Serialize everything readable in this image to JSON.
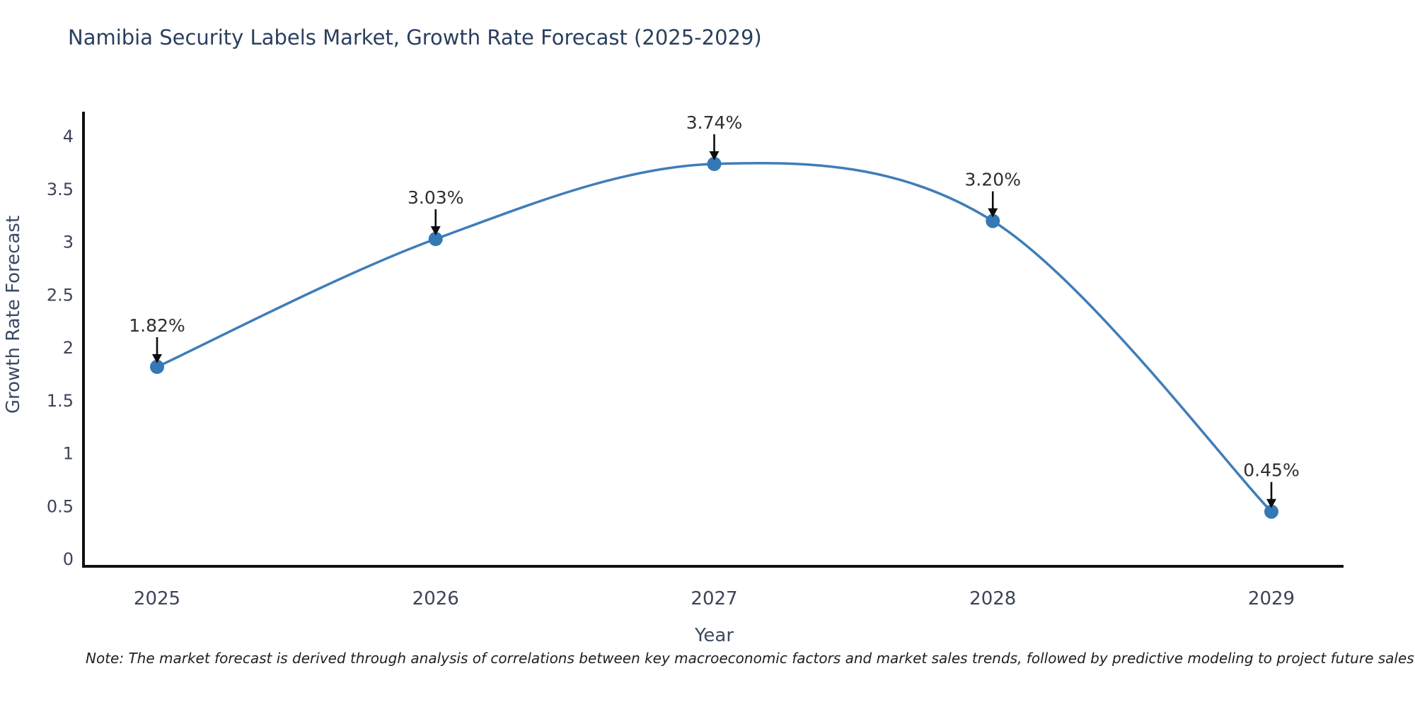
{
  "page": {
    "title": "Namibia Security Labels Market, Growth Rate Forecast (2025-2029)",
    "note": "Note: The market forecast is derived through analysis of correlations between key macroeconomic factors and market sales trends, followed by predictive modeling to project future sales"
  },
  "chart_data": {
    "type": "line",
    "title": "Namibia Security Labels Market, Growth Rate Forecast (2025-2029)",
    "xlabel": "Year",
    "ylabel": "Growth Rate Forecast",
    "categories": [
      "2025",
      "2026",
      "2027",
      "2028",
      "2029"
    ],
    "x": [
      2025,
      2026,
      2027,
      2028,
      2029
    ],
    "values": [
      1.82,
      3.03,
      3.74,
      3.2,
      0.45
    ],
    "point_labels": [
      "1.82%",
      "3.03%",
      "3.74%",
      "3.20%",
      "0.45%"
    ],
    "ytick_values": [
      0,
      0.5,
      1,
      1.5,
      2,
      2.5,
      3,
      3.5,
      4
    ],
    "ytick_labels": [
      "0",
      "0.5",
      "1",
      "1.5",
      "2",
      "2.5",
      "3",
      "3.5",
      "4"
    ],
    "ylim": [
      0,
      4.3
    ],
    "grid": false,
    "legend": null,
    "colors": {
      "line": "#3f7db8",
      "marker": "#3578b6",
      "axis": "#111111",
      "tick_label": "#3d4458",
      "axis_title": "#3b4a63",
      "title": "#2a3f5f",
      "annotation_text": "#2e2e2e",
      "arrow": "#0d0d0d"
    }
  }
}
